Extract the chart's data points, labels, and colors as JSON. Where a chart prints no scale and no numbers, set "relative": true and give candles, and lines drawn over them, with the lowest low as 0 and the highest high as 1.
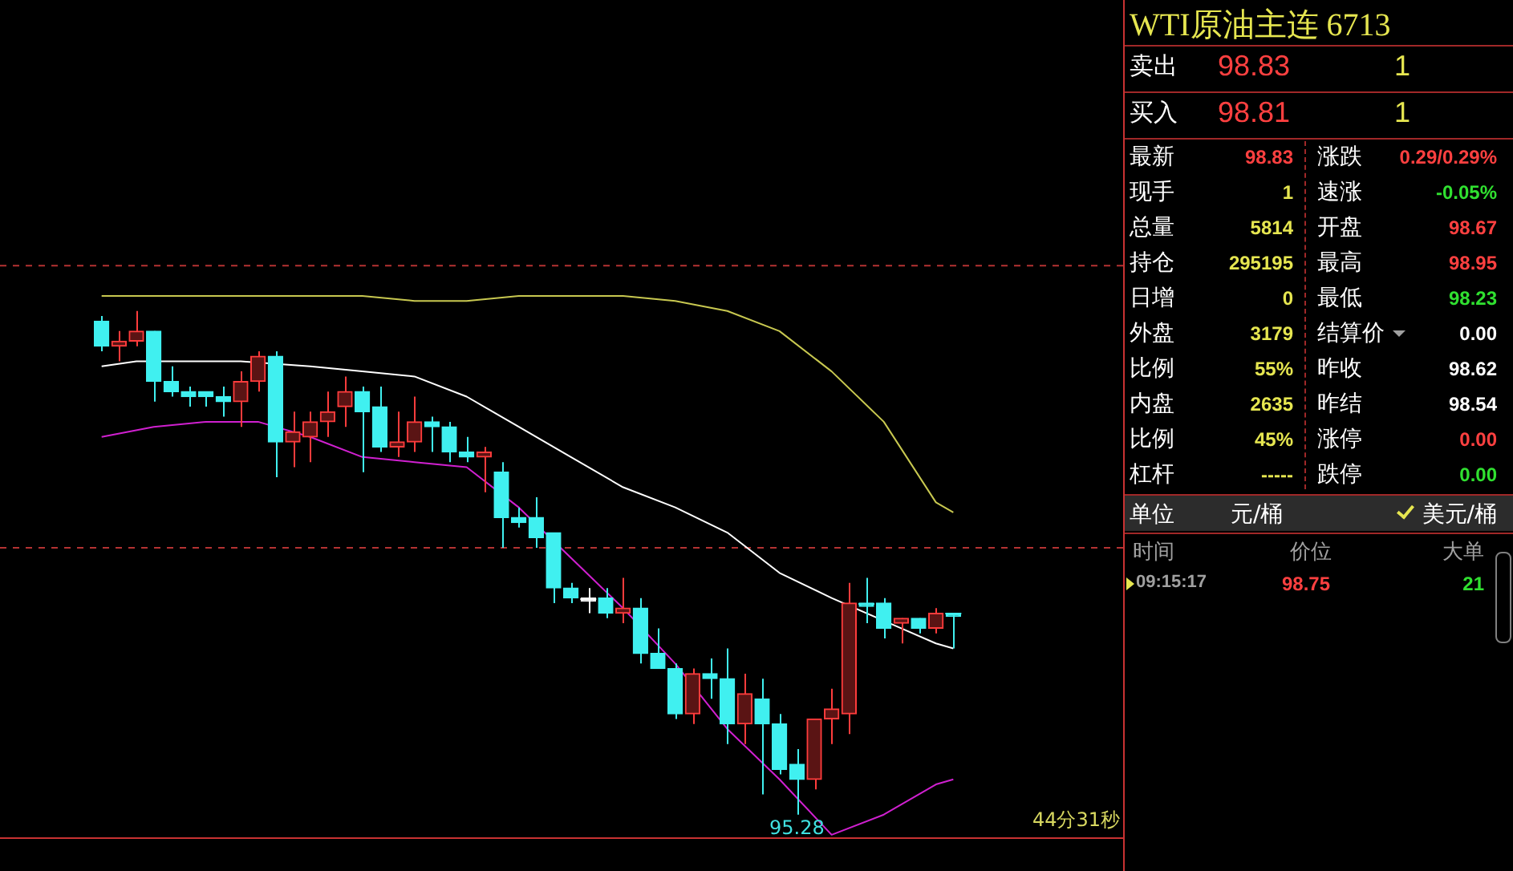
{
  "chart_data": [
    {
      "type": "candlestick",
      "relative": true,
      "marker": "none",
      "categories": [
        null,
        null,
        null,
        null,
        null,
        null,
        null,
        null,
        null,
        null,
        null,
        null,
        null,
        null,
        null,
        null,
        null,
        null,
        null,
        null,
        null,
        null,
        null,
        null,
        null,
        null,
        null,
        null,
        null,
        null,
        null,
        null,
        null,
        null,
        null,
        null,
        null,
        null,
        null,
        null,
        null,
        null,
        null,
        null,
        null,
        null,
        null,
        null,
        null,
        null
      ],
      "ohlc": [
        [
          0.98,
          0.99,
          0.92,
          0.93
        ],
        [
          0.93,
          0.96,
          0.9,
          0.94
        ],
        [
          0.94,
          1,
          0.93,
          0.96
        ],
        [
          0.96,
          0.96,
          0.82,
          0.86
        ],
        [
          0.86,
          0.89,
          0.83,
          0.84
        ],
        [
          0.84,
          0.85,
          0.81,
          0.83
        ],
        [
          0.84,
          0.84,
          0.81,
          0.83
        ],
        [
          0.83,
          0.85,
          0.79,
          0.82
        ],
        [
          0.82,
          0.88,
          0.77,
          0.86
        ],
        [
          0.86,
          0.92,
          0.84,
          0.91
        ],
        [
          0.91,
          0.92,
          0.67,
          0.74
        ],
        [
          0.74,
          0.8,
          0.69,
          0.76
        ],
        [
          0.75,
          0.8,
          0.7,
          0.78
        ],
        [
          0.78,
          0.84,
          0.75,
          0.8
        ],
        [
          0.81,
          0.87,
          0.77,
          0.84
        ],
        [
          0.84,
          0.85,
          0.68,
          0.8
        ],
        [
          0.81,
          0.85,
          0.72,
          0.73
        ],
        [
          0.73,
          0.8,
          0.71,
          0.74
        ],
        [
          0.74,
          0.83,
          0.72,
          0.78
        ],
        [
          0.78,
          0.79,
          0.72,
          0.77
        ],
        [
          0.77,
          0.78,
          0.7,
          0.72
        ],
        [
          0.72,
          0.75,
          0.7,
          0.71
        ],
        [
          0.71,
          0.73,
          0.64,
          0.72
        ],
        [
          0.68,
          0.7,
          0.53,
          0.59
        ],
        [
          0.59,
          0.61,
          0.57,
          0.58
        ],
        [
          0.59,
          0.63,
          0.53,
          0.55
        ],
        [
          0.56,
          0.56,
          0.42,
          0.45
        ],
        [
          0.45,
          0.46,
          0.42,
          0.43
        ],
        [
          0.43,
          0.45,
          0.4,
          0.43
        ],
        [
          0.43,
          0.45,
          0.39,
          0.4
        ],
        [
          0.4,
          0.47,
          0.38,
          0.41
        ],
        [
          0.41,
          0.43,
          0.3,
          0.32
        ],
        [
          0.32,
          0.37,
          0.29,
          0.29
        ],
        [
          0.29,
          0.3,
          0.19,
          0.2
        ],
        [
          0.2,
          0.29,
          0.18,
          0.28
        ],
        [
          0.28,
          0.31,
          0.23,
          0.27
        ],
        [
          0.27,
          0.33,
          0.14,
          0.18
        ],
        [
          0.18,
          0.28,
          0.14,
          0.24
        ],
        [
          0.23,
          0.27,
          0.04,
          0.18
        ],
        [
          0.18,
          0.2,
          0.08,
          0.09
        ],
        [
          0.1,
          0.13,
          0,
          0.07
        ],
        [
          0.07,
          0.19,
          0.05,
          0.19
        ],
        [
          0.19,
          0.25,
          0.14,
          0.21
        ],
        [
          0.2,
          0.46,
          0.16,
          0.42
        ],
        [
          0.42,
          0.47,
          0.38,
          0.42
        ],
        [
          0.42,
          0.43,
          0.35,
          0.37
        ],
        [
          0.38,
          0.39,
          0.34,
          0.39
        ],
        [
          0.39,
          0.39,
          0.36,
          0.37
        ],
        [
          0.37,
          0.41,
          0.36,
          0.4
        ],
        [
          0.4,
          0.4,
          0.33,
          0.4
        ]
      ],
      "colors": [
        "#40f0f0",
        "#ff3c3c",
        "#ff3c3c",
        "#40f0f0",
        "#40f0f0",
        "#40f0f0",
        "#40f0f0",
        "#40f0f0",
        "#ff3c3c",
        "#ff3c3c",
        "#40f0f0",
        "#ff3c3c",
        "#ff3c3c",
        "#ff3c3c",
        "#ff3c3c",
        "#40f0f0",
        "#40f0f0",
        "#ff3c3c",
        "#ff3c3c",
        "#40f0f0",
        "#40f0f0",
        "#40f0f0",
        "#ff3c3c",
        "#40f0f0",
        "#40f0f0",
        "#40f0f0",
        "#40f0f0",
        "#40f0f0",
        "#ffffff",
        "#40f0f0",
        "#ff3c3c",
        "#40f0f0",
        "#40f0f0",
        "#40f0f0",
        "#ff3c3c",
        "#40f0f0",
        "#40f0f0",
        "#ff3c3c",
        "#40f0f0",
        "#40f0f0",
        "#40f0f0",
        "#ff3c3c",
        "#ff3c3c",
        "#ff3c3c",
        "#40f0f0",
        "#40f0f0",
        "#ff3c3c",
        "#40f0f0",
        "#ff3c3c",
        "#40f0f0"
      ],
      "series": [
        {
          "type": "line",
          "color": "#c8c850",
          "values": [
            1.03,
            null,
            null,
            1.03,
            null,
            null,
            1.03,
            null,
            null,
            1.03,
            null,
            null,
            1.03,
            null,
            null,
            1.03,
            null,
            null,
            1.02,
            null,
            null,
            1.02,
            null,
            null,
            1.03,
            null,
            null,
            1.03,
            null,
            null,
            1.03,
            null,
            null,
            1.02,
            null,
            null,
            1.0,
            null,
            null,
            0.96,
            null,
            null,
            0.88,
            null,
            null,
            0.78,
            null,
            null,
            0.62,
            0.6
          ]
        },
        {
          "type": "line",
          "color": "#ffffff",
          "values": [
            0.89,
            null,
            0.9,
            null,
            null,
            null,
            0.9,
            null,
            0.9,
            null,
            null,
            null,
            0.89,
            null,
            null,
            0.88,
            null,
            null,
            0.87,
            null,
            null,
            0.83,
            null,
            null,
            0.77,
            null,
            null,
            0.71,
            null,
            null,
            0.65,
            null,
            null,
            0.61,
            null,
            null,
            0.56,
            null,
            null,
            0.48,
            null,
            null,
            0.43,
            null,
            null,
            null,
            0.37,
            null,
            0.34,
            0.33
          ]
        },
        {
          "type": "line",
          "color": "#d020d0",
          "values": [
            0.75,
            null,
            null,
            0.77,
            null,
            null,
            0.78,
            null,
            null,
            0.78,
            null,
            null,
            0.75,
            null,
            null,
            0.71,
            null,
            null,
            0.7,
            null,
            null,
            0.69,
            null,
            null,
            0.61,
            null,
            null,
            0.51,
            null,
            null,
            0.41,
            null,
            null,
            0.3,
            null,
            null,
            0.17,
            null,
            null,
            0.07,
            null,
            null,
            -0.04,
            null,
            null,
            0.0,
            null,
            null,
            0.06,
            0.07
          ]
        }
      ],
      "ref_lines": [
        {
          "axis": "y",
          "value": 1.09,
          "color": "#b43232",
          "line_style": "dashed"
        },
        {
          "axis": "y",
          "value": 0.53,
          "color": "#b43232",
          "line_style": "dashed"
        }
      ],
      "annotations": [
        {
          "text": "95.28",
          "y": 0
        },
        "44分31秒"
      ]
    },
    {
      "type": "other",
      "title": "WTI原油主连 6713",
      "annotations": [
        "卖出",
        "98.83",
        "1",
        "买入",
        "98.81",
        "1",
        "最新",
        "98.83",
        "涨跌",
        "0.29/0.29%",
        "现手",
        "1",
        "速涨",
        "-0.05%",
        "总量",
        "5814",
        "开盘",
        "98.67",
        "持仓",
        "295195",
        "最高",
        "98.95",
        "日增",
        "0",
        "最低",
        "98.23",
        "外盘",
        "3179",
        "结算价",
        "0.00",
        "比例",
        "55%",
        "昨收",
        "98.62",
        "内盘",
        "2635",
        "昨结",
        "98.54",
        "比例",
        "45%",
        "涨停",
        "0.00",
        "杠杆",
        "-----",
        "跌停",
        "0.00",
        "单位",
        "元/桶",
        "美元/桶",
        "时间",
        "价位",
        "大单",
        "09:15:17",
        "98.75",
        "21"
      ]
    }
  ]
}
